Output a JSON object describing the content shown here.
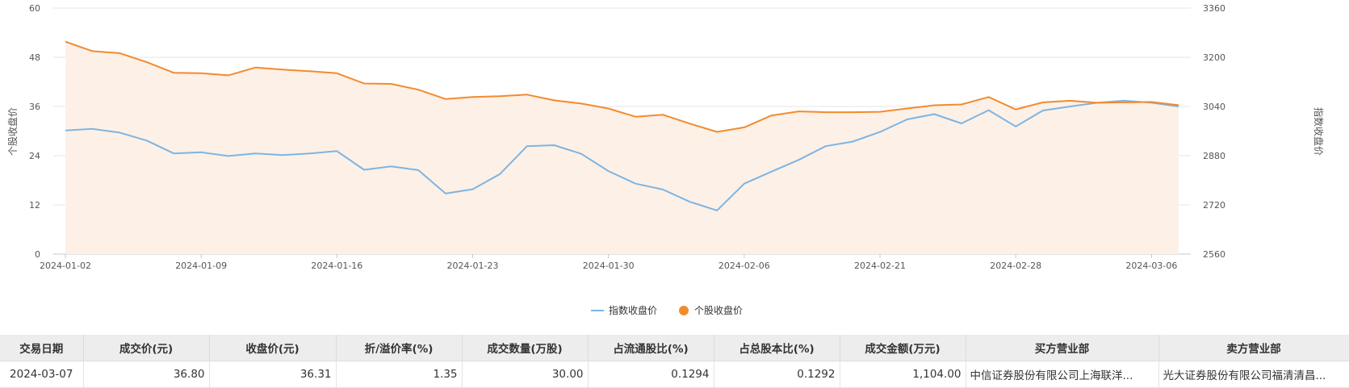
{
  "chart_data": {
    "type": "line",
    "x": [
      "2024-01-02",
      "2024-01-03",
      "2024-01-04",
      "2024-01-05",
      "2024-01-08",
      "2024-01-09",
      "2024-01-10",
      "2024-01-11",
      "2024-01-12",
      "2024-01-15",
      "2024-01-16",
      "2024-01-17",
      "2024-01-18",
      "2024-01-19",
      "2024-01-22",
      "2024-01-23",
      "2024-01-24",
      "2024-01-25",
      "2024-01-26",
      "2024-01-29",
      "2024-01-30",
      "2024-01-31",
      "2024-02-01",
      "2024-02-02",
      "2024-02-05",
      "2024-02-06",
      "2024-02-07",
      "2024-02-08",
      "2024-02-19",
      "2024-02-20",
      "2024-02-21",
      "2024-02-22",
      "2024-02-23",
      "2024-02-26",
      "2024-02-27",
      "2024-02-28",
      "2024-02-29",
      "2024-03-01",
      "2024-03-04",
      "2024-03-05",
      "2024-03-06",
      "2024-03-07"
    ],
    "x_ticks": [
      "2024-01-02",
      "2024-01-09",
      "2024-01-16",
      "2024-01-23",
      "2024-01-30",
      "2024-02-06",
      "2024-02-21",
      "2024-02-28",
      "2024-03-06"
    ],
    "series": [
      {
        "name": "指数收盘价",
        "axis": "right",
        "color": "#7cb5e4",
        "values": [
          2962,
          2967,
          2955,
          2929,
          2887,
          2891,
          2879,
          2887,
          2882,
          2887,
          2895,
          2834,
          2845,
          2833,
          2757,
          2771,
          2820,
          2911,
          2914,
          2886,
          2830,
          2789,
          2770,
          2730,
          2702,
          2789,
          2828,
          2866,
          2911,
          2926,
          2957,
          2998,
          3015,
          2985,
          3028,
          2975,
          3027,
          3040,
          3052,
          3059,
          3052,
          3040
        ]
      },
      {
        "name": "个股收盘价",
        "axis": "left",
        "color": "#f28b2e",
        "values": [
          51.8,
          49.5,
          49.0,
          46.8,
          44.2,
          44.1,
          43.6,
          45.5,
          45.0,
          44.6,
          44.1,
          41.6,
          41.5,
          40.1,
          37.8,
          38.3,
          38.5,
          38.9,
          37.5,
          36.7,
          35.5,
          33.5,
          34.0,
          31.8,
          29.8,
          30.9,
          33.8,
          34.8,
          34.6,
          34.6,
          34.7,
          35.5,
          36.3,
          36.5,
          38.3,
          35.3,
          37.0,
          37.4,
          36.9,
          37.0,
          37.1,
          36.31
        ]
      }
    ],
    "y_left": {
      "label": "个股收盘价",
      "ylim": [
        0,
        60
      ],
      "ticks": [
        0,
        12,
        24,
        36,
        48,
        60
      ]
    },
    "y_right": {
      "label": "指数收盘价",
      "ylim": [
        2560,
        3360
      ],
      "ticks": [
        2560,
        2720,
        2880,
        3040,
        3200,
        3360
      ]
    },
    "legend": {
      "position": "bottom-center",
      "items": [
        "指数收盘价",
        "个股收盘价"
      ]
    },
    "grid": true
  },
  "table": {
    "headers": [
      "交易日期",
      "成交价(元)",
      "收盘价(元)",
      "折/溢价率(%)",
      "成交数量(万股)",
      "占流通股比(%)",
      "占总股本比(%)",
      "成交金额(万元)",
      "买方营业部",
      "卖方营业部"
    ],
    "rows": [
      [
        "2024-03-07",
        "36.80",
        "36.31",
        "1.35",
        "30.00",
        "0.1294",
        "0.1292",
        "1,104.00",
        "中信证券股份有限公司上海联洋...",
        "光大证券股份有限公司福清清昌..."
      ]
    ]
  },
  "colors": {
    "index_line": "#7cb5e4",
    "stock_line": "#f28b2e",
    "stock_area": "#fdf0e6",
    "header_bg": "#ededed"
  }
}
